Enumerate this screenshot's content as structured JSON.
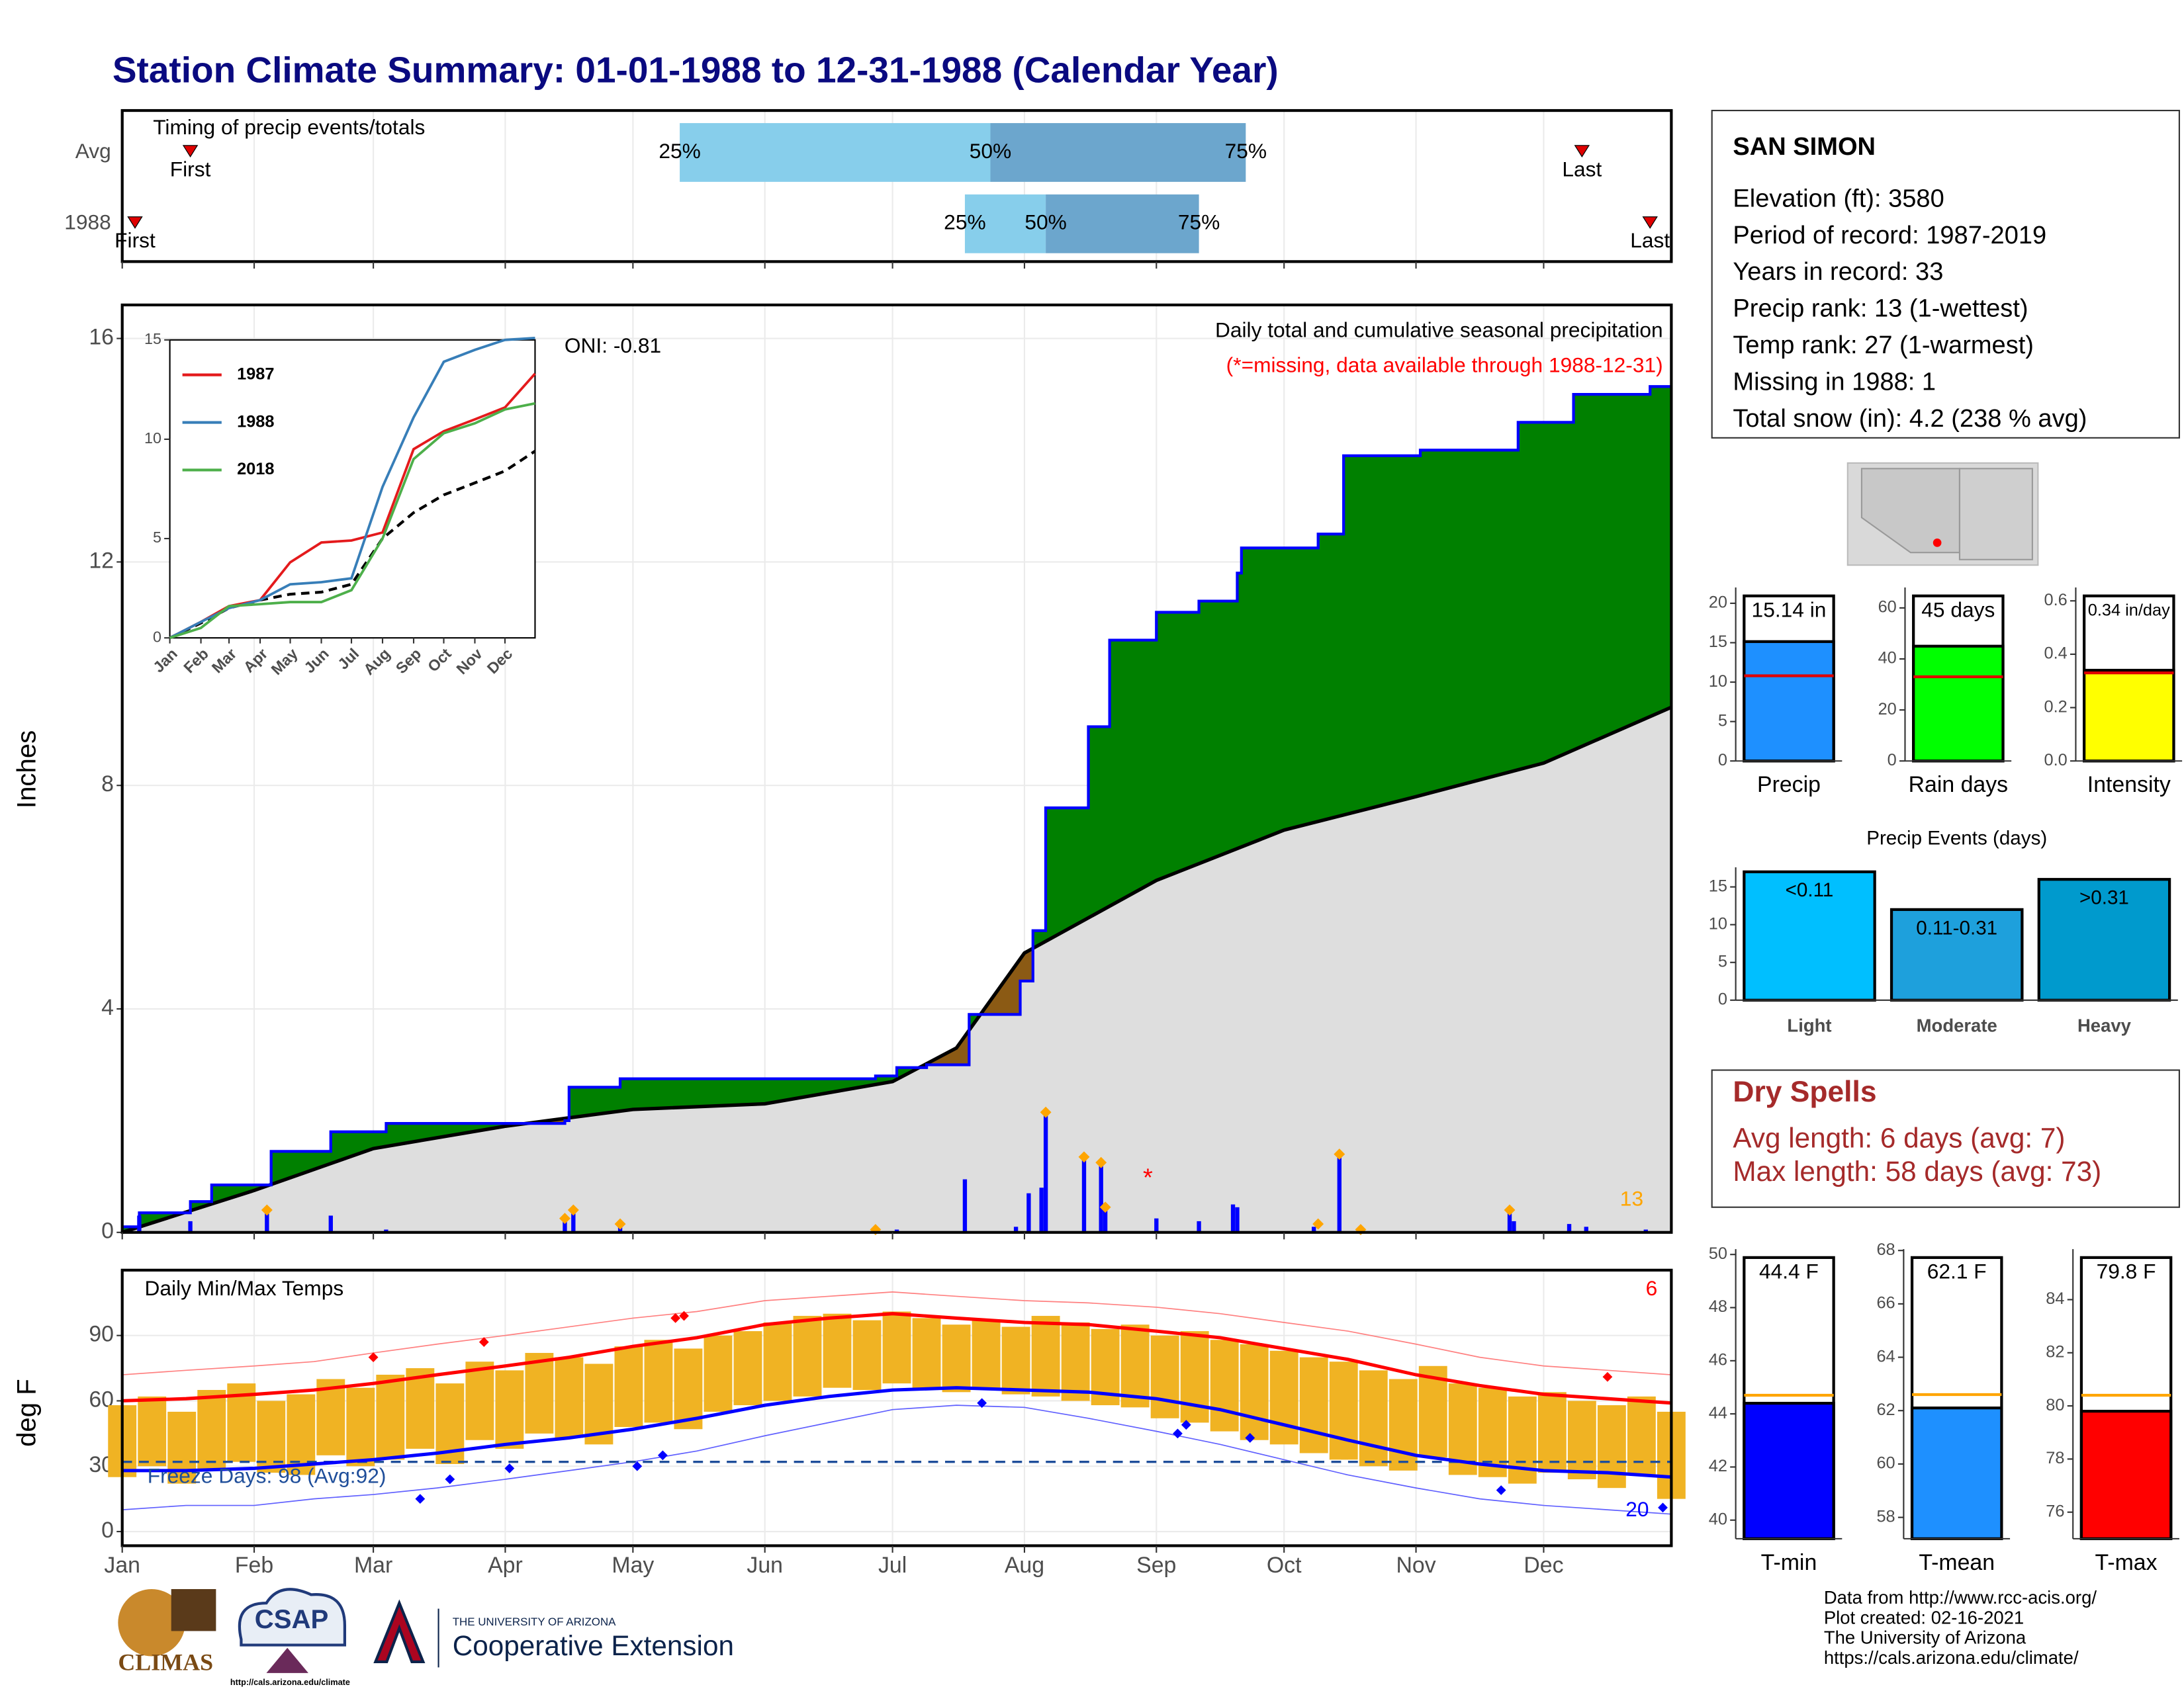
{
  "title": "Station Climate Summary: 01-01-1988 to 12-31-1988 (Calendar Year)",
  "chart_data": [
    {
      "type": "range",
      "title": "Timing of precip events/totals",
      "xlim": [
        1,
        365
      ],
      "rows": [
        {
          "label": "Avg",
          "first": 17,
          "q25": 132,
          "q50": 205,
          "q75": 265,
          "last": 344
        },
        {
          "label": "1988",
          "first": 4,
          "q25": 199,
          "q50": 218,
          "q75": 254,
          "last": 360
        }
      ],
      "marker_labels": {
        "first": "First",
        "last": "Last",
        "q25": "25%",
        "q50": "50%",
        "q75": "75%"
      },
      "colors": {
        "early": "#87ceeb",
        "late": "#6ca6cd",
        "marker": "#e00000"
      }
    },
    {
      "type": "step-area",
      "ylabel": "Inches",
      "annotation": "Daily total and cumulative seasonal precipitation",
      "note": "(*=missing, data available through 1988-12-31)",
      "oni": "ONI: -0.81",
      "count_label": "13",
      "missing_marker": {
        "label": "*",
        "x": 242,
        "y": 0.95
      },
      "xlim": [
        1,
        365
      ],
      "ylim": [
        0,
        16.6
      ],
      "yticks": [
        0,
        4,
        8,
        12,
        16
      ],
      "grid": true,
      "cumulative": {
        "color": "#0000ff",
        "x": [
          1,
          5,
          17,
          22,
          36,
          50,
          63,
          105,
          106,
          118,
          178,
          183,
          190,
          200,
          212,
          215,
          218,
          228,
          233,
          244,
          254,
          263,
          264,
          282,
          288,
          306,
          329,
          342,
          360,
          365
        ],
        "values": [
          0.1,
          0.35,
          0.55,
          0.85,
          1.45,
          1.8,
          1.95,
          2.0,
          2.6,
          2.75,
          2.8,
          2.95,
          3.0,
          3.9,
          4.5,
          5.4,
          7.6,
          9.05,
          10.6,
          11.1,
          11.3,
          11.8,
          12.25,
          12.5,
          13.9,
          14.0,
          14.5,
          15.0,
          15.14,
          15.14
        ]
      },
      "mean": {
        "x": [
          1,
          32,
          60,
          91,
          121,
          152,
          182,
          197,
          213,
          244,
          274,
          305,
          335,
          365
        ],
        "values": [
          0,
          0.75,
          1.5,
          1.9,
          2.2,
          2.3,
          2.7,
          3.3,
          5.0,
          6.3,
          7.2,
          7.8,
          8.4,
          9.4
        ]
      },
      "daily": {
        "color": "#0000ff",
        "x": [
          5,
          17,
          35,
          50,
          63,
          105,
          107,
          118,
          178,
          183,
          199,
          211,
          214,
          217,
          218,
          227,
          231,
          232,
          244,
          254,
          262,
          263,
          281,
          287,
          292,
          327,
          328,
          341,
          345,
          359
        ],
        "values": [
          0.3,
          0.2,
          0.35,
          0.3,
          0.05,
          0.2,
          0.35,
          0.1,
          0.05,
          0.05,
          0.95,
          0.1,
          0.7,
          0.8,
          2.1,
          1.35,
          1.2,
          0.4,
          0.25,
          0.2,
          0.5,
          0.45,
          0.1,
          1.35,
          0.05,
          0.35,
          0.2,
          0.15,
          0.1,
          0.05
        ]
      },
      "records": {
        "color": "#ffa500",
        "x": [
          35,
          105,
          107,
          118,
          178,
          218,
          227,
          231,
          232,
          282,
          287,
          292,
          327
        ],
        "values": [
          0.4,
          0.25,
          0.4,
          0.15,
          0.05,
          2.15,
          1.35,
          1.25,
          0.45,
          0.15,
          1.4,
          0.05,
          0.4
        ]
      },
      "colors": {
        "above": "#008000",
        "below": "#8b5a14",
        "base": "#dedede",
        "mean_line": "#000000",
        "missing": "#ff0000",
        "note": "#ff0000"
      }
    },
    {
      "type": "line",
      "xlim": [
        1,
        365
      ],
      "ylim": [
        0,
        15
      ],
      "yticks": [
        0,
        5,
        10,
        15
      ],
      "xticks": [
        {
          "value": 1,
          "label": "Jan"
        },
        {
          "value": 32,
          "label": "Feb"
        },
        {
          "value": 60,
          "label": "Mar"
        },
        {
          "value": 91,
          "label": "Apr"
        },
        {
          "value": 121,
          "label": "May"
        },
        {
          "value": 152,
          "label": "Jun"
        },
        {
          "value": 182,
          "label": "Jul"
        },
        {
          "value": 213,
          "label": "Aug"
        },
        {
          "value": 244,
          "label": "Sep"
        },
        {
          "value": 274,
          "label": "Oct"
        },
        {
          "value": 305,
          "label": "Nov"
        },
        {
          "value": 335,
          "label": "Dec"
        }
      ],
      "x": [
        1,
        32,
        60,
        91,
        121,
        152,
        182,
        213,
        244,
        274,
        305,
        335,
        365
      ],
      "series": [
        {
          "name": "1987",
          "color": "#e41a1c",
          "values": [
            0,
            0.8,
            1.6,
            1.9,
            3.8,
            4.8,
            4.9,
            5.3,
            9.5,
            10.4,
            11.0,
            11.6,
            13.3
          ]
        },
        {
          "name": "1988",
          "color": "#377eb8",
          "values": [
            0,
            0.8,
            1.5,
            1.9,
            2.7,
            2.8,
            3.0,
            7.6,
            11.1,
            13.9,
            14.5,
            15.0,
            15.1
          ]
        },
        {
          "name": "2018",
          "color": "#4daf4a",
          "values": [
            0,
            0.5,
            1.6,
            1.7,
            1.8,
            1.8,
            2.4,
            5.0,
            9.0,
            10.3,
            10.8,
            11.5,
            11.8
          ]
        }
      ],
      "mean": {
        "color": "#000000",
        "values": [
          0,
          0.75,
          1.5,
          1.9,
          2.2,
          2.3,
          2.7,
          5.0,
          6.3,
          7.2,
          7.8,
          8.4,
          9.4
        ]
      }
    },
    {
      "type": "temperature",
      "title": "Daily Min/Max Temps",
      "ylabel": "deg F",
      "freeze_label": "Freeze Days: 98 (Avg:92)",
      "high_count": "6",
      "low_count": "20",
      "xlim": [
        1,
        365
      ],
      "ylim": [
        -6.5,
        120
      ],
      "yticks": [
        0,
        30,
        60,
        90
      ],
      "freeze_line": 32,
      "xticks": [
        {
          "value": 1,
          "label": "Jan"
        },
        {
          "value": 32,
          "label": "Feb"
        },
        {
          "value": 60,
          "label": "Mar"
        },
        {
          "value": 91,
          "label": "Apr"
        },
        {
          "value": 121,
          "label": "May"
        },
        {
          "value": 152,
          "label": "Jun"
        },
        {
          "value": 182,
          "label": "Jul"
        },
        {
          "value": 213,
          "label": "Aug"
        },
        {
          "value": 244,
          "label": "Sep"
        },
        {
          "value": 274,
          "label": "Oct"
        },
        {
          "value": 305,
          "label": "Nov"
        },
        {
          "value": 335,
          "label": "Dec"
        }
      ],
      "x": [
        1,
        8,
        15,
        22,
        29,
        36,
        43,
        50,
        57,
        64,
        71,
        78,
        85,
        92,
        99,
        106,
        113,
        120,
        127,
        134,
        141,
        148,
        155,
        162,
        169,
        176,
        183,
        190,
        197,
        204,
        211,
        218,
        225,
        232,
        239,
        246,
        253,
        260,
        267,
        274,
        281,
        288,
        295,
        302,
        309,
        316,
        323,
        330,
        337,
        344,
        351,
        358,
        365
      ],
      "tmax": [
        58,
        62,
        55,
        65,
        68,
        60,
        63,
        70,
        66,
        72,
        75,
        68,
        78,
        74,
        82,
        80,
        77,
        85,
        88,
        84,
        90,
        92,
        96,
        99,
        100,
        97,
        101,
        98,
        95,
        97,
        94,
        99,
        96,
        93,
        95,
        90,
        92,
        88,
        86,
        83,
        80,
        78,
        74,
        70,
        76,
        68,
        66,
        62,
        64,
        60,
        58,
        62,
        55
      ],
      "tmin": [
        25,
        30,
        22,
        28,
        32,
        27,
        26,
        35,
        30,
        33,
        38,
        31,
        42,
        38,
        45,
        43,
        40,
        48,
        50,
        47,
        55,
        58,
        60,
        62,
        66,
        65,
        68,
        66,
        64,
        66,
        63,
        62,
        60,
        58,
        57,
        52,
        50,
        46,
        42,
        40,
        36,
        33,
        30,
        28,
        34,
        26,
        25,
        22,
        27,
        24,
        20,
        26,
        15
      ],
      "normals": {
        "x": [
          1,
          16,
          32,
          46,
          60,
          75,
          91,
          106,
          121,
          136,
          152,
          167,
          182,
          197,
          213,
          228,
          244,
          259,
          274,
          289,
          305,
          320,
          335,
          350,
          365
        ],
        "avg_max": [
          60,
          61,
          63,
          65,
          68,
          72,
          76,
          80,
          85,
          89,
          95,
          98,
          100,
          98,
          96,
          95,
          92,
          89,
          84,
          79,
          72,
          67,
          63,
          61,
          59
        ],
        "avg_min": [
          28,
          28,
          29,
          31,
          33,
          36,
          40,
          43,
          47,
          52,
          58,
          62,
          65,
          66,
          65,
          64,
          61,
          56,
          49,
          42,
          35,
          31,
          28,
          27,
          25
        ],
        "record_max": [
          72,
          74,
          76,
          78,
          82,
          86,
          90,
          94,
          98,
          101,
          106,
          108,
          110,
          108,
          106,
          105,
          103,
          100,
          96,
          92,
          86,
          80,
          76,
          74,
          72
        ],
        "record_min": [
          10,
          12,
          12,
          15,
          17,
          20,
          24,
          28,
          32,
          37,
          44,
          50,
          56,
          58,
          57,
          52,
          46,
          40,
          33,
          26,
          20,
          15,
          12,
          10,
          8
        ]
      },
      "record_highs": {
        "x": [
          60,
          86,
          131,
          133,
          350
        ],
        "values": [
          80,
          87,
          98,
          99,
          71
        ]
      },
      "record_lows": {
        "x": [
          71,
          78,
          92,
          122,
          128,
          203,
          249,
          251,
          266,
          325,
          363
        ],
        "values": [
          15,
          24,
          29,
          30,
          35,
          59,
          45,
          49,
          43,
          19,
          11
        ]
      },
      "colors": {
        "bar": "#f0b323",
        "high": "#ff0000",
        "low": "#0000ff",
        "record_high": "#ff8080",
        "record_low": "#6060ff",
        "freeze": "#1f4e9a"
      }
    },
    {
      "type": "bar",
      "categories": [
        "Precip"
      ],
      "values": [
        15.14
      ],
      "value_labels": [
        "15.14 in"
      ],
      "average": [
        10.8
      ],
      "color": "#1e90ff",
      "average_color": "#e00000",
      "ylim": [
        0,
        22
      ],
      "yticks": [
        0,
        5,
        10,
        15,
        20
      ]
    },
    {
      "type": "bar",
      "categories": [
        "Rain days"
      ],
      "values": [
        45
      ],
      "value_labels": [
        "45 days"
      ],
      "average": [
        33
      ],
      "color": "#00ff00",
      "average_color": "#e00000",
      "ylim": [
        0,
        68
      ],
      "yticks": [
        0,
        20,
        40,
        60
      ]
    },
    {
      "type": "bar",
      "categories": [
        "Intensity"
      ],
      "values": [
        0.34
      ],
      "value_labels": [
        "0.34 in/day"
      ],
      "average": [
        0.33
      ],
      "color": "#ffff00",
      "average_color": "#e00000",
      "ylim": [
        0,
        0.65
      ],
      "yticks": [
        {
          "value": 0,
          "label": "0.0"
        },
        0.2,
        0.4,
        0.6
      ]
    },
    {
      "type": "bar",
      "title": "Precip Events (days)",
      "categories": [
        "Light",
        "Moderate",
        "Heavy"
      ],
      "values": [
        17,
        12,
        16
      ],
      "ranges": [
        "<0.11",
        "0.11-0.31",
        ">0.31"
      ],
      "colors": [
        "#00bfff",
        "#1ea0dc",
        "#009acd"
      ],
      "ylim": [
        0,
        17.6
      ],
      "yticks": [
        0,
        5,
        10,
        15
      ]
    },
    {
      "type": "bar",
      "categories": [
        "T-min"
      ],
      "values": [
        44.4
      ],
      "value_labels": [
        "44.4 F"
      ],
      "average": [
        44.7
      ],
      "color": "#0000ff",
      "average_color": "#ffa500",
      "ylim": [
        39.3,
        50.2
      ],
      "yticks": [
        40,
        42,
        44,
        46,
        48,
        50
      ]
    },
    {
      "type": "bar",
      "categories": [
        "T-mean"
      ],
      "values": [
        62.1
      ],
      "value_labels": [
        "62.1 F"
      ],
      "average": [
        62.6
      ],
      "color": "#1e90ff",
      "average_color": "#ffa500",
      "ylim": [
        57.2,
        68.05
      ],
      "yticks": [
        58,
        60,
        62,
        64,
        66,
        68
      ]
    },
    {
      "type": "bar",
      "categories": [
        "T-max"
      ],
      "values": [
        79.8
      ],
      "value_labels": [
        "79.8 F"
      ],
      "average": [
        80.4
      ],
      "color": "#ff0000",
      "average_color": "#ffa500",
      "ylim": [
        75,
        85.9
      ],
      "yticks": [
        76,
        78,
        80,
        82,
        84
      ]
    }
  ],
  "station": {
    "name": "SAN SIMON",
    "lines": [
      "Elevation (ft): 3580",
      "Period of record: 1987-2019",
      "Years in record: 33",
      "Precip rank: 13 (1-wettest)",
      "Temp rank: 27 (1-warmest)",
      "Missing in 1988: 1",
      "Total snow (in): 4.2 (238 % avg)"
    ]
  },
  "dry_spells": {
    "title": "Dry Spells",
    "lines": [
      "Avg length: 6 days (avg: 7)",
      "Max length: 58 days (avg: 73)"
    ]
  },
  "footer": {
    "lines": [
      "Data from http://www.rcc-acis.org/",
      "Plot created: 02-16-2021",
      "The University of Arizona",
      "https://cals.arizona.edu/climate/"
    ]
  },
  "logos": {
    "climas": "CLIMAS",
    "csap": "CSAP",
    "csap_url": "http://cals.arizona.edu/climate",
    "university": "THE UNIVERSITY OF ARIZONA",
    "extension": "Cooperative Extension"
  }
}
